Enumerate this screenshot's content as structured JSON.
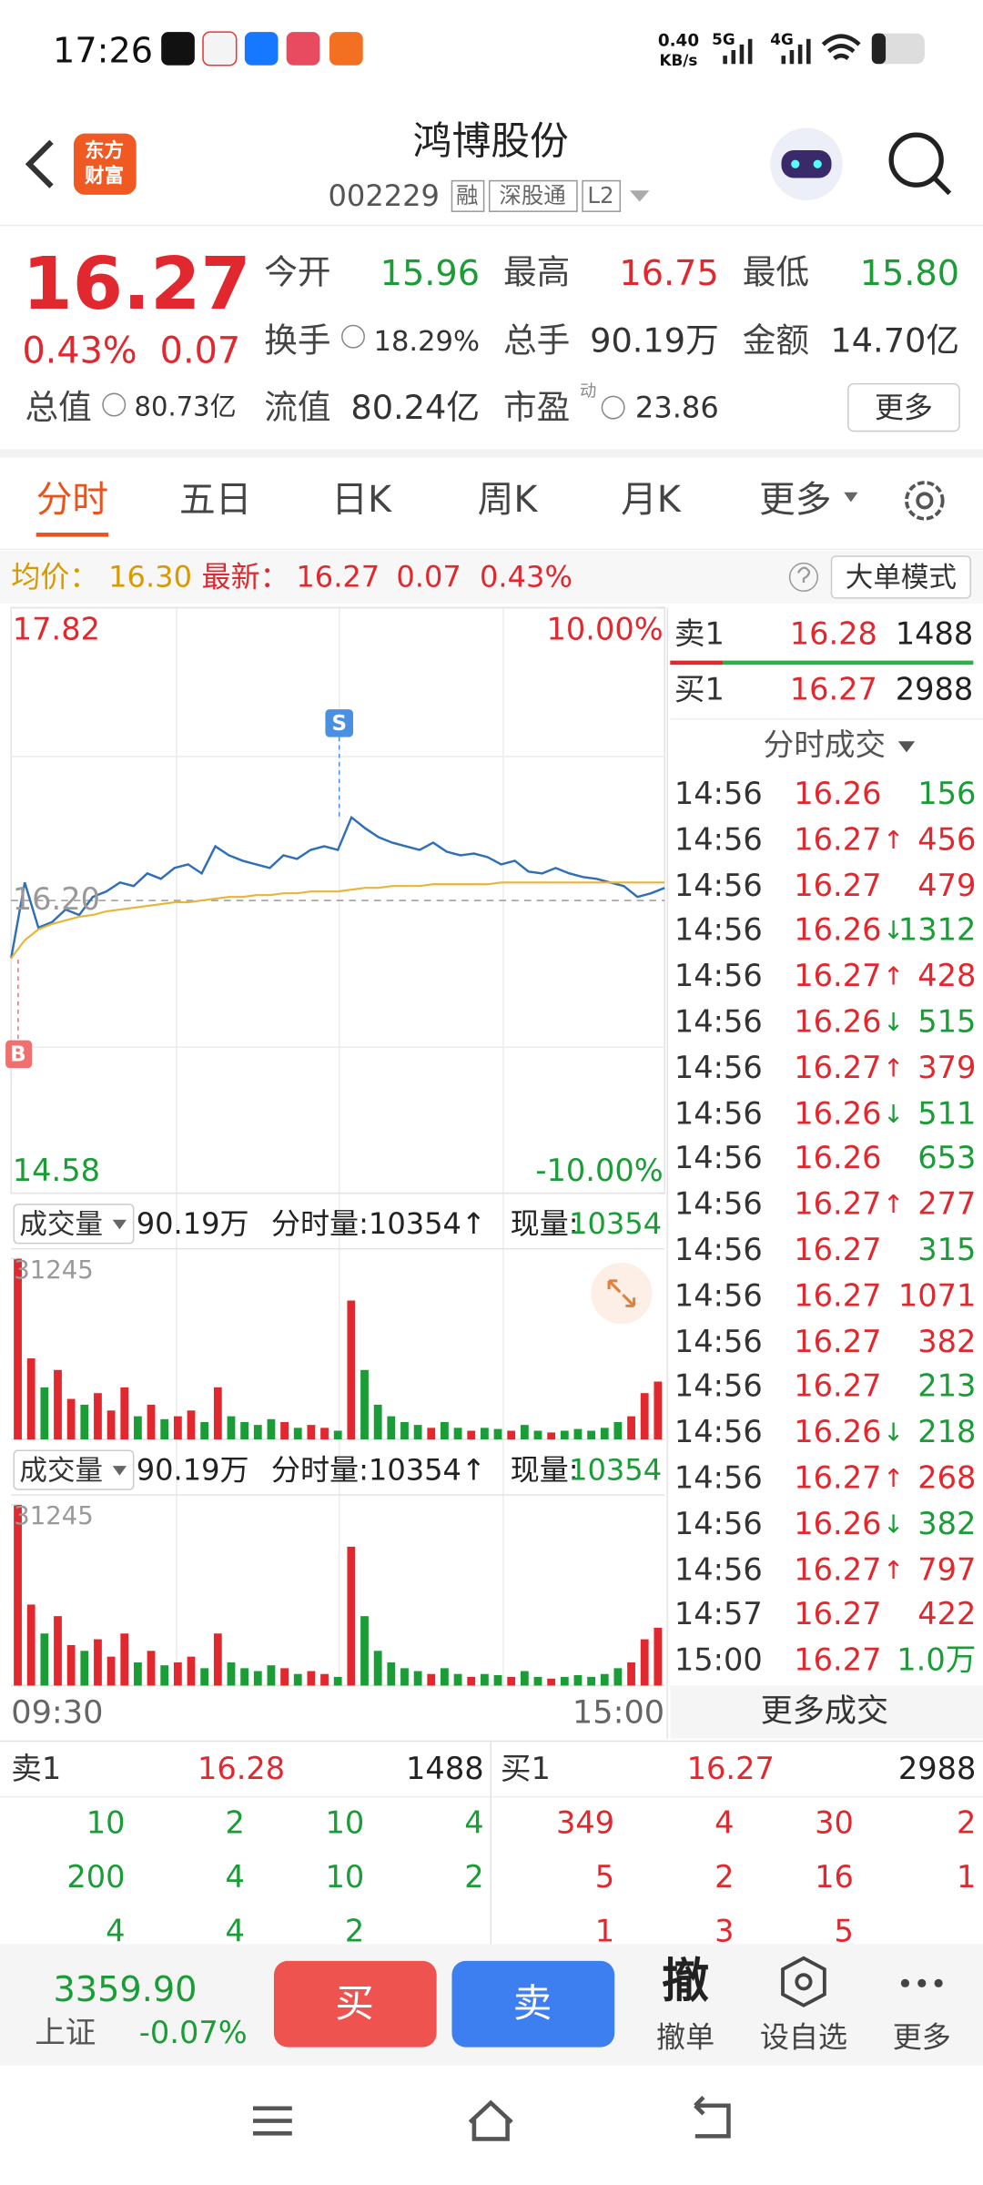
{
  "status_bar": {
    "time": "17:26",
    "speed": "0.40",
    "speed_unit": "KB/s",
    "network1": "5G",
    "network2": "4G"
  },
  "header": {
    "logo": [
      "东方",
      "财富"
    ],
    "title": "鸿博股份",
    "code": "002229",
    "tags": [
      "融",
      "深股通",
      "L2"
    ]
  },
  "quote": {
    "price": "16.27",
    "change_pct": "0.43%",
    "change": "0.07",
    "fields": [
      {
        "label": "今开",
        "value": "15.96"
      },
      {
        "label": "最高",
        "value": "16.75"
      },
      {
        "label": "最低",
        "value": "15.80"
      },
      {
        "label": "换手",
        "value": "18.29%"
      },
      {
        "label": "总手",
        "value": "90.19万"
      },
      {
        "label": "金额",
        "value": "14.70亿"
      },
      {
        "label": "总值",
        "value": "80.73亿"
      },
      {
        "label": "流值",
        "value": "80.24亿"
      },
      {
        "label": "市盈",
        "note": "动",
        "value": "23.86"
      }
    ],
    "more": "更多"
  },
  "tabs": [
    "分时",
    "五日",
    "日K",
    "周K",
    "月K",
    "更多"
  ],
  "info_bar": {
    "avg_label": "均价：",
    "avg": "16.30",
    "last_label": "最新：",
    "last": "16.27",
    "change": "0.07",
    "change_pct": "0.43%",
    "mode": "大单模式"
  },
  "chart_data": [
    {
      "type": "line",
      "categories": [
        "09:30",
        null,
        null,
        null,
        null,
        null,
        null,
        null,
        null,
        null,
        null,
        null,
        null,
        null,
        null,
        null,
        null,
        null,
        null,
        null,
        null,
        null,
        null,
        null,
        null,
        null,
        null,
        null,
        null,
        null,
        null,
        null,
        null,
        null,
        null,
        null,
        null,
        null,
        null,
        null,
        null,
        null,
        null,
        null,
        null,
        null,
        null,
        null,
        "15:00"
      ],
      "series": [
        {
          "color": "#2f6fb8",
          "values": [
            15.88,
            16.3,
            16.05,
            16.08,
            16.15,
            16.12,
            16.22,
            16.25,
            16.3,
            16.28,
            16.35,
            16.32,
            16.38,
            16.4,
            16.35,
            16.5,
            16.45,
            16.42,
            16.4,
            16.38,
            16.45,
            16.43,
            16.48,
            16.5,
            16.48,
            16.66,
            16.6,
            16.55,
            16.52,
            16.5,
            16.48,
            16.52,
            16.47,
            16.45,
            16.46,
            16.44,
            16.4,
            16.42,
            16.36,
            16.35,
            16.38,
            16.35,
            16.33,
            16.32,
            16.3,
            16.28,
            16.22,
            16.24,
            16.27
          ]
        },
        {
          "color": "#e8b43a",
          "values": [
            15.88,
            15.98,
            16.04,
            16.07,
            16.09,
            16.11,
            16.12,
            16.14,
            16.15,
            16.16,
            16.17,
            16.18,
            16.19,
            16.19,
            16.2,
            16.21,
            16.22,
            16.22,
            16.23,
            16.23,
            16.24,
            16.24,
            16.25,
            16.25,
            16.25,
            16.26,
            16.27,
            16.27,
            16.28,
            16.28,
            16.28,
            16.29,
            16.29,
            16.29,
            16.29,
            16.29,
            16.3,
            16.3,
            16.3,
            16.3,
            16.3,
            16.3,
            16.3,
            16.3,
            16.3,
            16.3,
            16.3,
            16.3,
            16.3
          ]
        }
      ],
      "ylim": [
        14.58,
        17.82
      ],
      "yticks": [
        17.82,
        {
          "value": 16.2,
          "label": "16.20"
        },
        14.58
      ],
      "y2lim": [
        -10,
        10
      ],
      "y2ticks": [
        {
          "value": 10,
          "label": "10.00%"
        },
        {
          "value": -10,
          "label": "-10.00%"
        }
      ],
      "markers": [
        "B",
        "S"
      ]
    },
    {
      "type": "bar",
      "title": "成交量",
      "total": "90.19万",
      "period_volume": "分时量:10354↑",
      "current_label": "现量:",
      "current_value": "10354",
      "ylim": [
        0,
        31245
      ],
      "yticks": [
        31245
      ],
      "values": [
        31245,
        14000,
        9000,
        12000,
        7000,
        6000,
        8000,
        5000,
        9000,
        4000,
        6000,
        3500,
        4000,
        5000,
        3000,
        9000,
        4000,
        3000,
        2500,
        3500,
        3000,
        2000,
        2500,
        2000,
        1500,
        24000,
        12000,
        6000,
        4000,
        3000,
        2500,
        2000,
        3000,
        2000,
        1500,
        2000,
        1800,
        1500,
        2500,
        1500,
        1200,
        1500,
        1800,
        1500,
        2000,
        3000,
        4000,
        8000,
        10000
      ],
      "colors": [
        "#e0282e",
        "#e0282e",
        "#1a9c36",
        "#e0282e",
        "#e0282e",
        "#1a9c36",
        "#e0282e",
        "#e0282e",
        "#e0282e",
        "#1a9c36",
        "#e0282e",
        "#1a9c36",
        "#e0282e",
        "#e0282e",
        "#1a9c36",
        "#e0282e",
        "#1a9c36",
        "#1a9c36",
        "#1a9c36",
        "#1a9c36",
        "#e0282e",
        "#1a9c36",
        "#e0282e",
        "#e0282e",
        "#1a9c36",
        "#e0282e",
        "#1a9c36",
        "#1a9c36",
        "#1a9c36",
        "#1a9c36",
        "#1a9c36",
        "#e0282e",
        "#1a9c36",
        "#1a9c36",
        "#e0282e",
        "#1a9c36",
        "#1a9c36",
        "#e0282e",
        "#1a9c36",
        "#1a9c36",
        "#e0282e",
        "#1a9c36",
        "#1a9c36",
        "#1a9c36",
        "#1a9c36",
        "#1a9c36",
        "#e0282e",
        "#e0282e",
        "#e0282e"
      ]
    }
  ],
  "order_book": {
    "ask_label": "卖1",
    "ask_price": "16.28",
    "ask_volume": "1488",
    "bid_label": "买1",
    "bid_price": "16.27",
    "bid_volume": "2988"
  },
  "ticks": {
    "title": "分时成交",
    "more": "更多成交",
    "rows": [
      {
        "time": "14:56",
        "price": "16.26",
        "volume": "156",
        "color": "#1a9c36"
      },
      {
        "time": "14:56",
        "price": "16.27",
        "arrow": "↑",
        "volume": "456",
        "color": "#e0282e"
      },
      {
        "time": "14:56",
        "price": "16.27",
        "volume": "479",
        "color": "#e0282e"
      },
      {
        "time": "14:56",
        "price": "16.26",
        "arrow": "↓",
        "volume": "1312",
        "color": "#1a9c36"
      },
      {
        "time": "14:56",
        "price": "16.27",
        "arrow": "↑",
        "volume": "428",
        "color": "#e0282e"
      },
      {
        "time": "14:56",
        "price": "16.26",
        "arrow": "↓",
        "volume": "515",
        "color": "#1a9c36"
      },
      {
        "time": "14:56",
        "price": "16.27",
        "arrow": "↑",
        "volume": "379",
        "color": "#e0282e"
      },
      {
        "time": "14:56",
        "price": "16.26",
        "arrow": "↓",
        "volume": "511",
        "color": "#1a9c36"
      },
      {
        "time": "14:56",
        "price": "16.26",
        "volume": "653",
        "color": "#1a9c36"
      },
      {
        "time": "14:56",
        "price": "16.27",
        "arrow": "↑",
        "volume": "277",
        "color": "#e0282e"
      },
      {
        "time": "14:56",
        "price": "16.27",
        "volume": "315",
        "color": "#1a9c36"
      },
      {
        "time": "14:56",
        "price": "16.27",
        "volume": "1071",
        "color": "#e0282e"
      },
      {
        "time": "14:56",
        "price": "16.27",
        "volume": "382",
        "color": "#e0282e"
      },
      {
        "time": "14:56",
        "price": "16.27",
        "volume": "213",
        "color": "#1a9c36"
      },
      {
        "time": "14:56",
        "price": "16.26",
        "arrow": "↓",
        "volume": "218",
        "color": "#1a9c36"
      },
      {
        "time": "14:56",
        "price": "16.27",
        "arrow": "↑",
        "volume": "268",
        "color": "#e0282e"
      },
      {
        "time": "14:56",
        "price": "16.26",
        "arrow": "↓",
        "volume": "382",
        "color": "#1a9c36"
      },
      {
        "time": "14:56",
        "price": "16.27",
        "arrow": "↑",
        "volume": "797",
        "color": "#e0282e"
      },
      {
        "time": "14:57",
        "price": "16.27",
        "volume": "422",
        "color": "#e0282e"
      },
      {
        "time": "15:00",
        "price": "16.27",
        "volume": "1.0万",
        "color": "#1a9c36"
      }
    ]
  },
  "depth": {
    "sell": {
      "label": "卖1",
      "price": "16.28",
      "volume": "1488",
      "rows": [
        [
          "10",
          "2",
          "10",
          "4"
        ],
        [
          "200",
          "4",
          "10",
          "2"
        ],
        [
          "4",
          "4",
          "2"
        ]
      ]
    },
    "buy": {
      "label": "买1",
      "price": "16.27",
      "volume": "2988",
      "rows": [
        [
          "349",
          "4",
          "30",
          "2"
        ],
        [
          "5",
          "2",
          "16",
          "1"
        ],
        [
          "1",
          "3",
          "5"
        ]
      ]
    }
  },
  "bottom_bar": {
    "index_value": "3359.90",
    "index_name": "上证",
    "index_change": "-0.07%",
    "buy": "买",
    "sell": "卖",
    "cancel_icon": "撤",
    "cancel": "撤单",
    "watchlist": "设自选",
    "more": "更多"
  }
}
